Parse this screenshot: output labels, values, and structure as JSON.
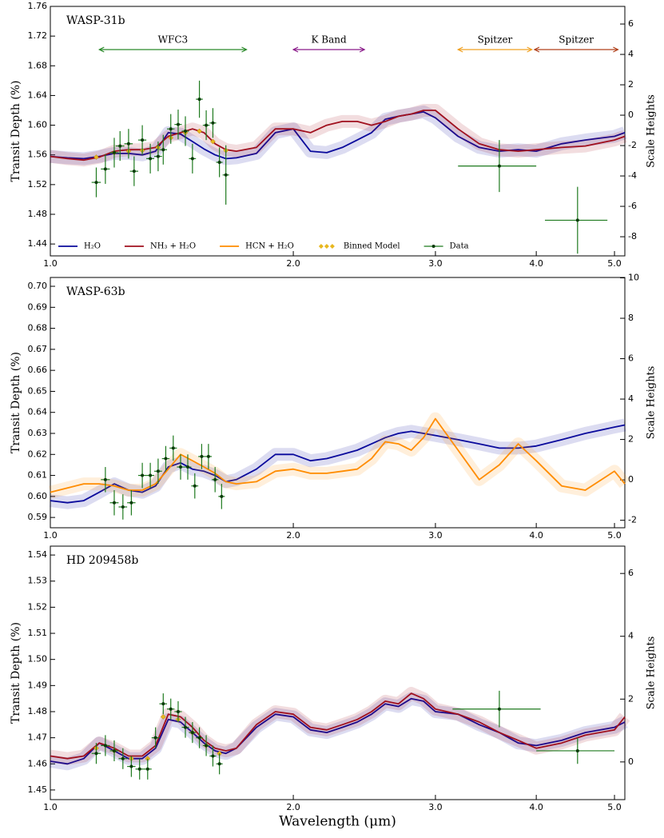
{
  "chart_data": [
    {
      "type": "line",
      "title": "WASP-31b",
      "ylabel": "Transit Depth (%)",
      "y2label": "Scale Heights",
      "xscale": "log",
      "xlim": [
        1.0,
        5.15
      ],
      "xticks": [
        {
          "value": 1,
          "label": "1.0"
        },
        {
          "value": 2,
          "label": "2.0"
        },
        {
          "value": 3,
          "label": "3.0"
        },
        {
          "value": 4,
          "label": "4.0"
        },
        {
          "value": 5,
          "label": "5.0"
        }
      ],
      "ylim": [
        1.424,
        1.76
      ],
      "yticks": [
        1.44,
        1.48,
        1.52,
        1.56,
        {
          "value": 1.6,
          "label": "1.60"
        },
        1.64,
        1.68,
        1.72,
        1.76
      ],
      "y2lim": [
        -9.26,
        7.16
      ],
      "y2ticks": [
        -8,
        -6,
        -4,
        -2,
        0,
        2,
        4,
        6
      ],
      "x": [
        1.0,
        1.05,
        1.1,
        1.15,
        1.2,
        1.25,
        1.3,
        1.35,
        1.4,
        1.45,
        1.5,
        1.55,
        1.6,
        1.65,
        1.7,
        1.8,
        1.9,
        2.0,
        2.1,
        2.2,
        2.3,
        2.4,
        2.5,
        2.6,
        2.7,
        2.8,
        2.9,
        3.0,
        3.2,
        3.4,
        3.6,
        3.8,
        4.0,
        4.3,
        4.6,
        5.0,
        5.15
      ],
      "series": [
        {
          "name": "H₂O",
          "color": "#0a0a9c",
          "values": [
            1.558,
            1.556,
            1.555,
            1.558,
            1.562,
            1.562,
            1.56,
            1.565,
            1.59,
            1.588,
            1.578,
            1.568,
            1.56,
            1.555,
            1.556,
            1.562,
            1.59,
            1.595,
            1.565,
            1.563,
            1.57,
            1.58,
            1.59,
            1.608,
            1.612,
            1.615,
            1.618,
            1.61,
            1.585,
            1.57,
            1.565,
            1.567,
            1.565,
            1.575,
            1.58,
            1.585,
            1.59
          ]
        },
        {
          "name": "NH₃ + H₂O",
          "color": "#a0101e",
          "values": [
            1.558,
            1.555,
            1.553,
            1.557,
            1.565,
            1.567,
            1.567,
            1.57,
            1.585,
            1.59,
            1.595,
            1.59,
            1.575,
            1.567,
            1.565,
            1.57,
            1.595,
            1.595,
            1.59,
            1.6,
            1.605,
            1.605,
            1.6,
            1.605,
            1.612,
            1.615,
            1.62,
            1.62,
            1.595,
            1.575,
            1.567,
            1.565,
            1.567,
            1.57,
            1.572,
            1.58,
            1.585
          ]
        }
      ],
      "binned": {
        "name": "Binned Model",
        "color": "#e8b820",
        "x": [
          1.14,
          1.2,
          1.25,
          1.3,
          1.36,
          1.41,
          1.47,
          1.53,
          1.59,
          1.65
        ],
        "values": [
          1.557,
          1.563,
          1.565,
          1.566,
          1.57,
          1.583,
          1.59,
          1.592,
          1.578,
          1.566
        ]
      },
      "data_points": {
        "name": "Data",
        "color": "#1e7a1e",
        "x": [
          1.14,
          1.17,
          1.2,
          1.22,
          1.25,
          1.27,
          1.3,
          1.33,
          1.36,
          1.38,
          1.41,
          1.44,
          1.47,
          1.5,
          1.53,
          1.56,
          1.59,
          1.62,
          1.65,
          3.6,
          4.5
        ],
        "values": [
          1.523,
          1.541,
          1.563,
          1.572,
          1.575,
          1.538,
          1.58,
          1.555,
          1.558,
          1.567,
          1.595,
          1.601,
          1.592,
          1.555,
          1.635,
          1.6,
          1.603,
          1.55,
          1.533,
          1.545,
          1.472
        ],
        "xerr": [
          0.015,
          0.015,
          0.015,
          0.015,
          0.015,
          0.015,
          0.015,
          0.015,
          0.015,
          0.015,
          0.015,
          0.015,
          0.015,
          0.015,
          0.015,
          0.015,
          0.015,
          0.015,
          0.015,
          0.4,
          0.4
        ],
        "yerr": [
          0.02,
          0.02,
          0.02,
          0.02,
          0.02,
          0.02,
          0.02,
          0.02,
          0.02,
          0.02,
          0.02,
          0.02,
          0.02,
          0.02,
          0.025,
          0.02,
          0.02,
          0.02,
          0.04,
          0.035,
          0.045
        ]
      },
      "annotations": [
        {
          "text": "WFC3",
          "x": [
            1.15,
            1.75
          ],
          "color": "#2a8a2a"
        },
        {
          "text": "K Band",
          "x": [
            2.0,
            2.45
          ],
          "color": "#8a1a8a"
        },
        {
          "text": "Spitzer",
          "x": [
            3.2,
            3.95
          ],
          "color": "#f0a020"
        },
        {
          "text": "Spitzer",
          "x": [
            3.98,
            5.05
          ],
          "color": "#b0401a"
        }
      ],
      "legend": {
        "position": "lower left",
        "entries": [
          {
            "name": "H₂O",
            "color": "#0a0a9c"
          },
          {
            "name": "NH₃ + H₂O",
            "color": "#a0101e"
          },
          {
            "name": "HCN + H₂O",
            "color": "#ff8c00"
          },
          {
            "name": "Binned Model",
            "color": "#e8b820"
          },
          {
            "name": "Data",
            "color": "#1e7a1e"
          }
        ]
      }
    },
    {
      "type": "line",
      "title": "WASP-63b",
      "ylabel": "Transit Depth (%)",
      "y2label": "Scale Heights",
      "xscale": "log",
      "xlim": [
        1.0,
        5.15
      ],
      "xticks": [
        {
          "value": 1,
          "label": "1.0"
        },
        {
          "value": 2,
          "label": "2.0"
        },
        {
          "value": 3,
          "label": "3.0"
        },
        {
          "value": 4,
          "label": "4.0"
        },
        {
          "value": 5,
          "label": "5.0"
        }
      ],
      "ylim": [
        0.5851,
        0.7042
      ],
      "yticks": [
        0.59,
        {
          "value": 0.6,
          "label": "0.60"
        },
        0.61,
        0.62,
        0.63,
        0.64,
        0.65,
        0.66,
        0.67,
        0.68,
        0.69,
        {
          "value": 0.7,
          "label": "0.70"
        }
      ],
      "y2lim": [
        -2.37,
        10.02
      ],
      "y2ticks": [
        -2,
        0,
        2,
        4,
        6,
        8,
        10
      ],
      "x": [
        1.0,
        1.05,
        1.1,
        1.15,
        1.2,
        1.25,
        1.3,
        1.35,
        1.4,
        1.45,
        1.5,
        1.55,
        1.6,
        1.65,
        1.7,
        1.8,
        1.9,
        2.0,
        2.1,
        2.2,
        2.3,
        2.4,
        2.5,
        2.6,
        2.7,
        2.8,
        2.9,
        3.0,
        3.2,
        3.4,
        3.6,
        3.8,
        4.0,
        4.3,
        4.6,
        5.0,
        5.15
      ],
      "series": [
        {
          "name": "H₂O",
          "color": "#0a0a9c",
          "values": [
            0.598,
            0.597,
            0.598,
            0.602,
            0.606,
            0.603,
            0.602,
            0.605,
            0.614,
            0.616,
            0.613,
            0.612,
            0.61,
            0.607,
            0.608,
            0.613,
            0.62,
            0.62,
            0.617,
            0.618,
            0.62,
            0.622,
            0.625,
            0.628,
            0.63,
            0.631,
            0.63,
            0.629,
            0.627,
            0.625,
            0.623,
            0.623,
            0.624,
            0.627,
            0.63,
            0.633,
            0.634
          ]
        },
        {
          "name": "HCN + H₂O",
          "color": "#ff8c00",
          "values": [
            0.602,
            0.604,
            0.606,
            0.606,
            0.605,
            0.603,
            0.603,
            0.606,
            0.613,
            0.62,
            0.617,
            0.614,
            0.611,
            0.607,
            0.606,
            0.607,
            0.612,
            0.613,
            0.611,
            0.611,
            0.612,
            0.613,
            0.618,
            0.626,
            0.625,
            0.622,
            0.628,
            0.637,
            0.622,
            0.608,
            0.615,
            0.625,
            0.617,
            0.605,
            0.603,
            0.612,
            0.606
          ]
        }
      ],
      "data_points": {
        "name": "Data",
        "color": "#1e7a1e",
        "x": [
          1.17,
          1.2,
          1.23,
          1.26,
          1.3,
          1.33,
          1.36,
          1.39,
          1.42,
          1.45,
          1.48,
          1.51,
          1.54,
          1.57,
          1.6,
          1.63
        ],
        "values": [
          0.608,
          0.597,
          0.595,
          0.597,
          0.61,
          0.61,
          0.612,
          0.618,
          0.623,
          0.614,
          0.614,
          0.605,
          0.619,
          0.619,
          0.608,
          0.6
        ],
        "xerr": [
          0.015,
          0.015,
          0.015,
          0.015,
          0.015,
          0.015,
          0.015,
          0.015,
          0.015,
          0.015,
          0.015,
          0.015,
          0.015,
          0.015,
          0.015,
          0.015
        ],
        "yerr": [
          0.006,
          0.006,
          0.006,
          0.006,
          0.006,
          0.006,
          0.006,
          0.006,
          0.006,
          0.006,
          0.006,
          0.006,
          0.006,
          0.006,
          0.006,
          0.006
        ]
      }
    },
    {
      "type": "line",
      "title": "HD 209458b",
      "ylabel": "Transit Depth (%)",
      "y2label": "Scale Heights",
      "xlabel": "Wavelength (μm)",
      "xscale": "log",
      "xlim": [
        1.0,
        5.15
      ],
      "xticks": [
        {
          "value": 1,
          "label": "1.0"
        },
        {
          "value": 2,
          "label": "2.0"
        },
        {
          "value": 3,
          "label": "3.0"
        },
        {
          "value": 4,
          "label": "4.0"
        },
        {
          "value": 5,
          "label": "5.0"
        }
      ],
      "ylim": [
        1.4463,
        1.5434
      ],
      "yticks": [
        1.45,
        1.46,
        1.47,
        1.48,
        1.49,
        {
          "value": 1.5,
          "label": "1.50"
        },
        1.51,
        1.52,
        1.53,
        1.54
      ],
      "y2lim": [
        -1.2,
        6.87
      ],
      "y2ticks": [
        0,
        2,
        4,
        6
      ],
      "x": [
        1.0,
        1.05,
        1.1,
        1.15,
        1.2,
        1.25,
        1.3,
        1.35,
        1.4,
        1.45,
        1.5,
        1.55,
        1.6,
        1.65,
        1.7,
        1.8,
        1.9,
        2.0,
        2.1,
        2.2,
        2.3,
        2.4,
        2.5,
        2.6,
        2.7,
        2.8,
        2.9,
        3.0,
        3.2,
        3.4,
        3.6,
        3.8,
        4.0,
        4.3,
        4.6,
        5.0,
        5.15
      ],
      "series": [
        {
          "name": "H₂O",
          "color": "#0a0a9c",
          "values": [
            1.461,
            1.46,
            1.462,
            1.468,
            1.465,
            1.462,
            1.462,
            1.466,
            1.477,
            1.476,
            1.472,
            1.468,
            1.465,
            1.464,
            1.466,
            1.474,
            1.479,
            1.478,
            1.473,
            1.472,
            1.474,
            1.476,
            1.479,
            1.483,
            1.482,
            1.485,
            1.484,
            1.48,
            1.479,
            1.475,
            1.472,
            1.468,
            1.467,
            1.469,
            1.472,
            1.474,
            1.476
          ]
        },
        {
          "name": "NH₃ + H₂O",
          "color": "#a0101e",
          "values": [
            1.463,
            1.462,
            1.463,
            1.468,
            1.466,
            1.463,
            1.463,
            1.467,
            1.479,
            1.478,
            1.474,
            1.469,
            1.466,
            1.465,
            1.466,
            1.475,
            1.48,
            1.479,
            1.474,
            1.473,
            1.475,
            1.477,
            1.48,
            1.484,
            1.483,
            1.487,
            1.485,
            1.481,
            1.479,
            1.476,
            1.472,
            1.469,
            1.466,
            1.468,
            1.471,
            1.473,
            1.478
          ]
        }
      ],
      "binned": {
        "name": "Binned Model",
        "color": "#e8b820",
        "x": [
          1.14,
          1.2,
          1.26,
          1.32,
          1.38,
          1.44,
          1.5,
          1.56,
          1.62
        ],
        "values": [
          1.466,
          1.465,
          1.462,
          1.462,
          1.478,
          1.477,
          1.472,
          1.467,
          1.464
        ]
      },
      "data_points": {
        "name": "Data",
        "color": "#1e7a1e",
        "x": [
          1.14,
          1.17,
          1.2,
          1.23,
          1.26,
          1.29,
          1.32,
          1.35,
          1.38,
          1.41,
          1.44,
          1.47,
          1.5,
          1.53,
          1.56,
          1.59,
          1.62,
          3.6,
          4.5
        ],
        "values": [
          1.464,
          1.467,
          1.465,
          1.462,
          1.459,
          1.458,
          1.458,
          1.47,
          1.483,
          1.481,
          1.48,
          1.474,
          1.472,
          1.47,
          1.467,
          1.463,
          1.46,
          1.481,
          1.465
        ],
        "xerr": [
          0.015,
          0.015,
          0.015,
          0.015,
          0.015,
          0.015,
          0.015,
          0.015,
          0.015,
          0.015,
          0.015,
          0.015,
          0.015,
          0.015,
          0.015,
          0.015,
          0.015,
          0.45,
          0.5
        ],
        "yerr": [
          0.004,
          0.004,
          0.004,
          0.004,
          0.004,
          0.004,
          0.004,
          0.004,
          0.004,
          0.004,
          0.004,
          0.004,
          0.004,
          0.004,
          0.004,
          0.004,
          0.004,
          0.007,
          0.005
        ]
      }
    }
  ]
}
